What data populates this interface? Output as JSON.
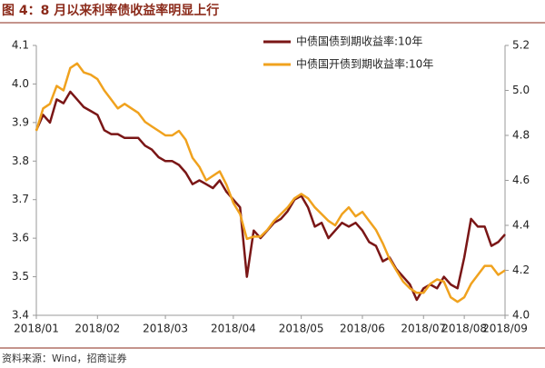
{
  "title": "图 4：8 月以来利率债收益率明显上行",
  "source": "资料来源：Wind，招商证券",
  "chart_data": {
    "type": "line",
    "categories": [
      "2018/01",
      null,
      null,
      null,
      null,
      null,
      null,
      null,
      null,
      "2018/02",
      null,
      null,
      null,
      null,
      null,
      null,
      null,
      null,
      null,
      "2018/03",
      null,
      null,
      null,
      null,
      null,
      null,
      null,
      null,
      null,
      "2018/04",
      null,
      null,
      null,
      null,
      null,
      null,
      null,
      null,
      null,
      "2018/05",
      null,
      null,
      null,
      null,
      null,
      null,
      null,
      null,
      "2018/06",
      null,
      null,
      null,
      null,
      null,
      null,
      null,
      null,
      "2018/07",
      null,
      null,
      null,
      null,
      null,
      "2018/08",
      null,
      null,
      null,
      null,
      null,
      "2018/09"
    ],
    "series": [
      {
        "name": "中债国债到期收益率:10年",
        "color": "#7a1616",
        "axis": "y",
        "values": [
          3.88,
          3.92,
          3.9,
          3.96,
          3.95,
          3.98,
          3.96,
          3.94,
          3.93,
          3.92,
          3.88,
          3.87,
          3.87,
          3.86,
          3.86,
          3.86,
          3.84,
          3.83,
          3.81,
          3.8,
          3.8,
          3.79,
          3.77,
          3.74,
          3.75,
          3.74,
          3.73,
          3.75,
          3.72,
          3.7,
          3.68,
          3.5,
          3.62,
          3.6,
          3.62,
          3.64,
          3.65,
          3.67,
          3.7,
          3.71,
          3.68,
          3.63,
          3.64,
          3.6,
          3.62,
          3.64,
          3.63,
          3.64,
          3.62,
          3.59,
          3.58,
          3.54,
          3.55,
          3.52,
          3.5,
          3.48,
          3.44,
          3.47,
          3.48,
          3.47,
          3.5,
          3.48,
          3.47,
          3.55,
          3.65,
          3.63,
          3.63,
          3.58,
          3.59,
          3.61
        ]
      },
      {
        "name": "中债国开债到期收益率:10年",
        "color": "#f0a21e",
        "axis": "y2",
        "values": [
          4.82,
          4.92,
          4.94,
          5.02,
          5.0,
          5.1,
          5.12,
          5.08,
          5.07,
          5.05,
          5.0,
          4.96,
          4.92,
          4.94,
          4.92,
          4.9,
          4.86,
          4.84,
          4.82,
          4.8,
          4.8,
          4.82,
          4.78,
          4.7,
          4.66,
          4.6,
          4.62,
          4.64,
          4.58,
          4.5,
          4.45,
          4.34,
          4.35,
          4.35,
          4.38,
          4.42,
          4.45,
          4.48,
          4.52,
          4.54,
          4.52,
          4.48,
          4.45,
          4.42,
          4.4,
          4.45,
          4.48,
          4.44,
          4.46,
          4.42,
          4.38,
          4.32,
          4.25,
          4.2,
          4.15,
          4.12,
          4.1,
          4.1,
          4.14,
          4.16,
          4.15,
          4.08,
          4.06,
          4.08,
          4.14,
          4.18,
          4.22,
          4.22,
          4.18,
          4.2
        ]
      }
    ],
    "ylim": [
      3.4,
      4.1
    ],
    "yticks": [
      3.4,
      3.5,
      3.6,
      3.7,
      3.8,
      3.9,
      {
        "value": 4,
        "label": "4.0"
      },
      4.1
    ],
    "y2lim": [
      4.0,
      5.2
    ],
    "y2ticks": [
      {
        "value": 4,
        "label": "4.0"
      },
      4.2,
      4.4,
      4.6,
      4.8,
      {
        "value": 5,
        "label": "5.0"
      },
      5.2
    ],
    "legend": "top-right"
  }
}
